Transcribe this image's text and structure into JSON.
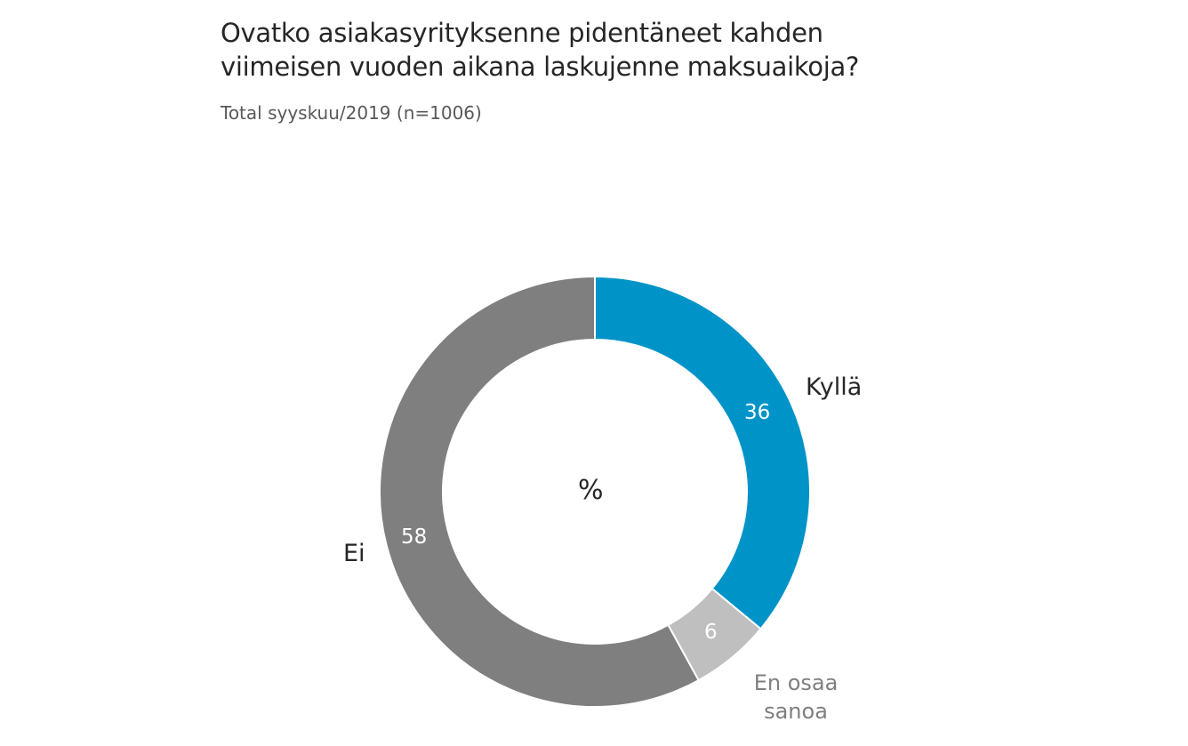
{
  "header": {
    "title_line1": "Ovatko asiakasyrityksenne pidentäneet kahden",
    "title_line2": "viimeisen vuoden aikana laskujenne maksuaikoja?",
    "subtitle": "Total syyskuu/2019 (n=1006)"
  },
  "center_label": "%",
  "colors": {
    "kylla": "#0093C8",
    "en_osaa_sanoa": "#BFBFBF",
    "ei": "#7F7F7F"
  },
  "segments": [
    {
      "label": "Kyllä",
      "value": "36"
    },
    {
      "label": "En osaa sanoa",
      "label_line1": "En osaa",
      "label_line2": "sanoa",
      "value": "6"
    },
    {
      "label": "Ei",
      "value": "58"
    }
  ],
  "chart_data": {
    "type": "pie",
    "subtype": "donut",
    "title": "Ovatko asiakasyrityksenne pidentäneet kahden viimeisen vuoden aikana laskujenne maksuaikoja?",
    "subtitle": "Total syyskuu/2019 (n=1006)",
    "unit": "%",
    "categories": [
      "Kyllä",
      "En osaa sanoa",
      "Ei"
    ],
    "values": [
      36,
      6,
      58
    ],
    "colors": [
      "#0093C8",
      "#BFBFBF",
      "#7F7F7F"
    ],
    "start_angle": "12 o'clock, clockwise",
    "legend": "none (direct labels)"
  }
}
